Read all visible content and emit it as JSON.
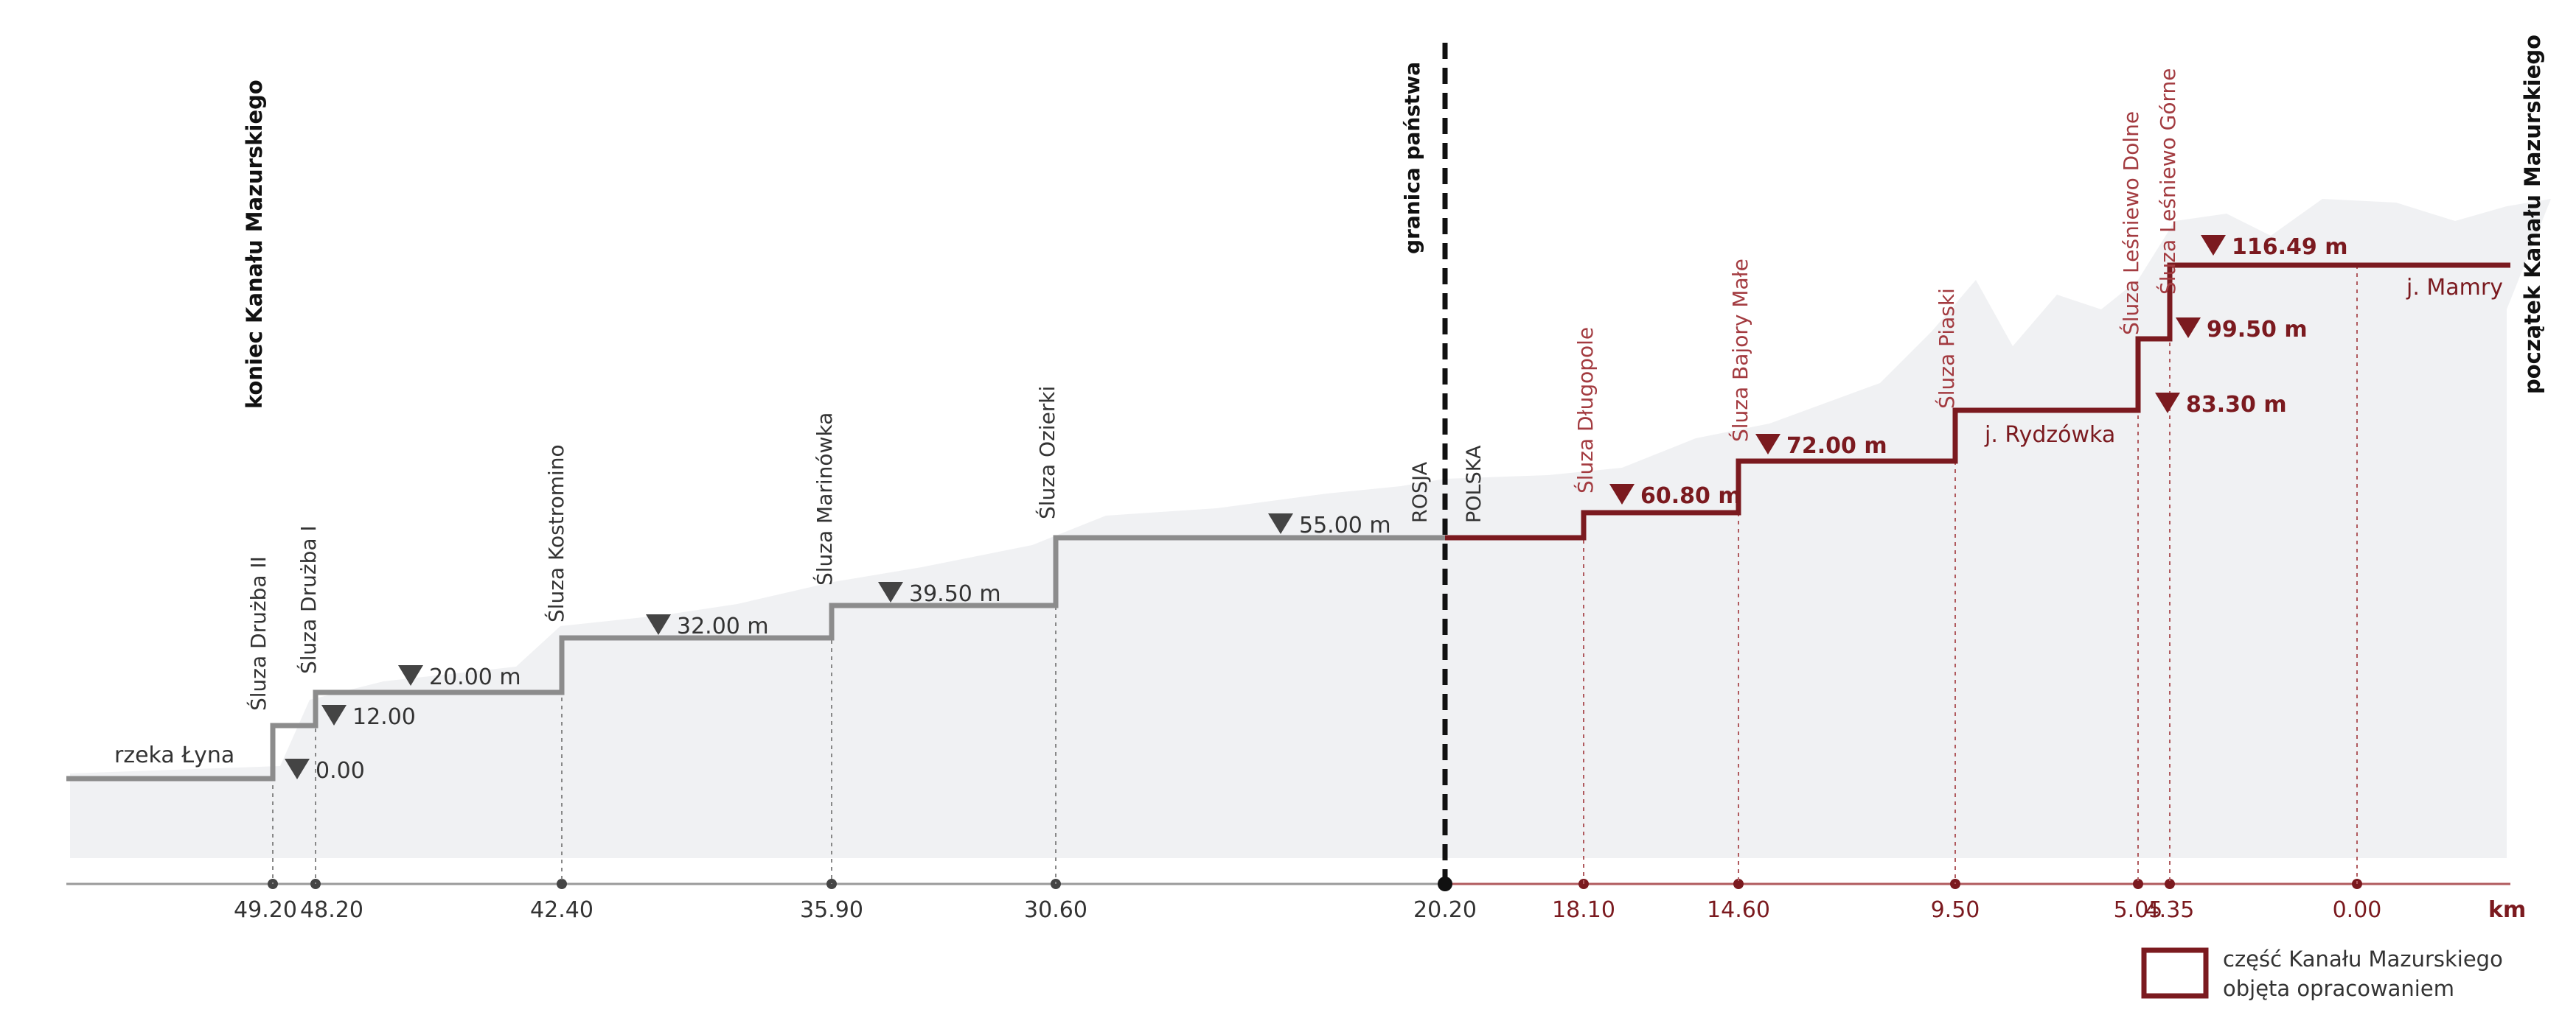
{
  "labels": {
    "end": "koniec Kanału Mazurskiego",
    "start": "początek Kanału Mazurskiego",
    "border": "granica państwa",
    "russia": "ROSJA",
    "poland": "POLSKA",
    "km_unit": "km"
  },
  "legend": {
    "line1": "część Kanału Mazurskiego",
    "line2": "objęta opracowaniem"
  },
  "colors": {
    "gray": "#8c8c8c",
    "red": "#7b1a1f",
    "terrain": "#f0f1f3"
  },
  "chart_data": {
    "type": "line",
    "title": "",
    "xlabel": "km",
    "ylabel": "",
    "x_ticks": [
      {
        "km": 49.2,
        "label": "49.20",
        "side": "russia"
      },
      {
        "km": 48.2,
        "label": "48.20",
        "side": "russia"
      },
      {
        "km": 42.4,
        "label": "42.40",
        "side": "russia"
      },
      {
        "km": 35.9,
        "label": "35.90",
        "side": "russia"
      },
      {
        "km": 30.6,
        "label": "30.60",
        "side": "russia"
      },
      {
        "km": 20.2,
        "label": "20.20",
        "side": "border"
      },
      {
        "km": 18.1,
        "label": "18.10",
        "side": "poland"
      },
      {
        "km": 14.6,
        "label": "14.60",
        "side": "poland"
      },
      {
        "km": 9.5,
        "label": "9.50",
        "side": "poland"
      },
      {
        "km": 5.05,
        "label": "5.05",
        "side": "poland"
      },
      {
        "km": 4.35,
        "label": "4.35",
        "side": "poland"
      },
      {
        "km": 0.0,
        "label": "0.00",
        "side": "poland"
      }
    ],
    "locks": [
      {
        "name": "Śluza Drużba II",
        "km": 49.2,
        "side": "russia"
      },
      {
        "name": "Śluza Drużba I",
        "km": 48.2,
        "side": "russia"
      },
      {
        "name": "Śluza Kostromino",
        "km": 42.4,
        "side": "russia"
      },
      {
        "name": "Śluza Marinówka",
        "km": 35.9,
        "side": "russia"
      },
      {
        "name": "Śluza Ozierki",
        "km": 30.6,
        "side": "russia"
      },
      {
        "name": "Śluza Długopole",
        "km": 18.1,
        "side": "poland"
      },
      {
        "name": "Śluza Bajory Małe",
        "km": 14.6,
        "side": "poland"
      },
      {
        "name": "Śluza Piaski",
        "km": 9.5,
        "side": "poland"
      },
      {
        "name": "Śluza Leśniewo Dolne",
        "km": 5.05,
        "side": "poland"
      },
      {
        "name": "Śluza Leśniewo Górne",
        "km": 4.35,
        "side": "poland"
      }
    ],
    "levels": [
      {
        "label": "0.00",
        "m": 0.0,
        "side": "russia"
      },
      {
        "label": "12.00",
        "m": 12.0,
        "side": "russia"
      },
      {
        "label": "20.00 m",
        "m": 20.0,
        "side": "russia"
      },
      {
        "label": "32.00 m",
        "m": 32.0,
        "side": "russia"
      },
      {
        "label": "39.50 m",
        "m": 39.5,
        "side": "russia"
      },
      {
        "label": "55.00 m",
        "m": 55.0,
        "side": "russia"
      },
      {
        "label": "60.80 m",
        "m": 60.8,
        "side": "poland"
      },
      {
        "label": "72.00 m",
        "m": 72.0,
        "side": "poland"
      },
      {
        "label": "83.30 m",
        "m": 83.3,
        "side": "poland"
      },
      {
        "label": "99.50 m",
        "m": 99.5,
        "side": "poland"
      },
      {
        "label": "116.49 m",
        "m": 116.49,
        "side": "poland"
      }
    ],
    "water_bodies": [
      {
        "name": "rzeka Łyna"
      },
      {
        "name": "j. Rydzówka"
      },
      {
        "name": "j. Mamry"
      }
    ]
  }
}
